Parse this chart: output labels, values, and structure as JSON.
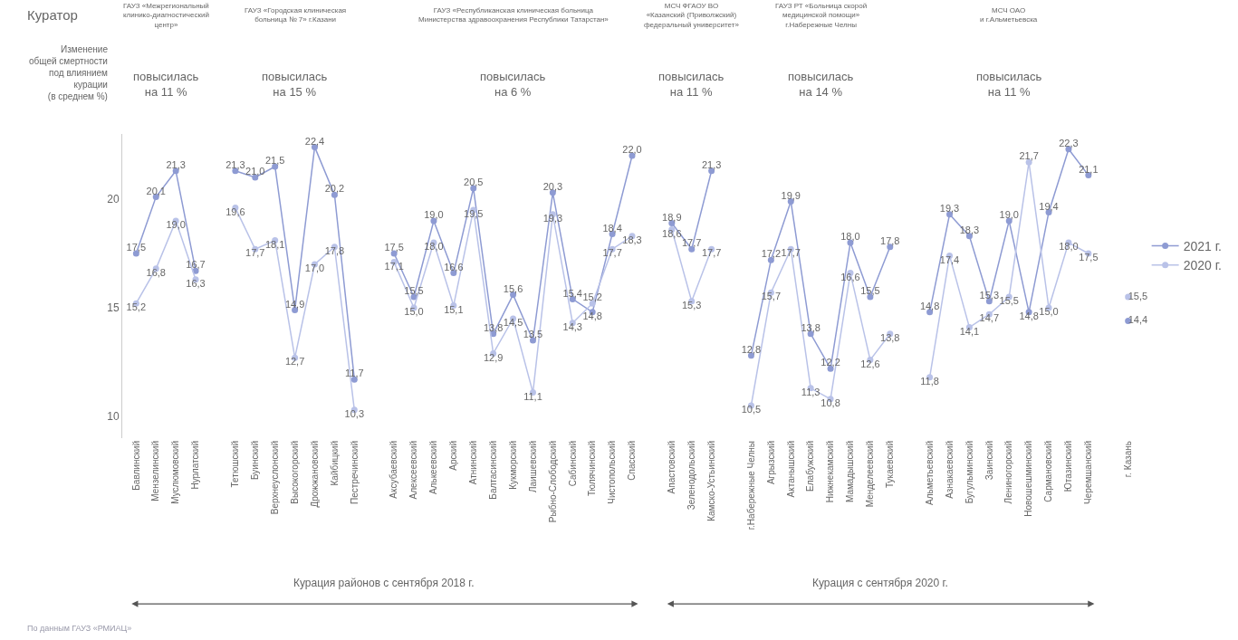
{
  "chart_data": {
    "type": "line",
    "categories": [
      "Бавлинский",
      "Мензелинский",
      "Муслюмовский",
      "Нурлатский",
      null,
      "Тетюшский",
      "Буинский",
      "Верхнеуслонский",
      "Высокогорский",
      "Дрожжановский",
      "Кайбицкий",
      "Пестречинский",
      null,
      "Аксубаевский",
      "Алексеевский",
      "Алькеевский",
      "Арский",
      "Атнинский",
      "Балтасинский",
      "Кукморский",
      "Лаишевский",
      "Рыбно-Слободский",
      "Сабинский",
      "Тюлячинский",
      "Чистопольский",
      "Спасский",
      null,
      "Апастовский",
      "Зеленодольский",
      "Камско-Устьинский",
      null,
      "г.Набережные Челны",
      "Агрызский",
      "Актанышский",
      "Елабужский",
      "Нижнекамский",
      "Мамадышский",
      "Менделеевский",
      "Тукаевский",
      null,
      "Альметьевский",
      "Азнакаевский",
      "Бугульминский",
      "Заинский",
      "Лениногорский",
      "Новошешминский",
      "Сармановский",
      "Ютазинский",
      "Черемшанский",
      null,
      "г. Казань"
    ],
    "series": [
      {
        "name": "2021 г.",
        "color": "#8e9bd3",
        "values": [
          17.5,
          20.1,
          21.3,
          16.7,
          null,
          21.3,
          21.0,
          21.5,
          14.9,
          22.4,
          20.2,
          11.7,
          null,
          17.5,
          15.5,
          19.0,
          16.6,
          20.5,
          13.8,
          15.6,
          13.5,
          20.3,
          15.4,
          14.8,
          18.4,
          22.0,
          null,
          18.9,
          17.7,
          21.3,
          null,
          12.8,
          17.2,
          19.9,
          13.8,
          12.2,
          18.0,
          15.5,
          17.8,
          null,
          14.8,
          19.3,
          18.3,
          15.3,
          19.0,
          14.8,
          19.4,
          22.3,
          21.1,
          null,
          14.4
        ],
        "value_labels": [
          "17,5",
          "20,1",
          "21,3",
          "16,7",
          null,
          "21,3",
          "21,0",
          "21,5",
          "14,9",
          "22,4",
          "20,2",
          "11,7",
          null,
          "17,5",
          "15,5",
          "19,0",
          "16,6",
          "20,5",
          "13,8",
          "15,6",
          "13,5",
          "20,3",
          "15,4",
          "14,8",
          "18,4",
          "22,0",
          null,
          "18,9",
          "17,7",
          "21,3",
          null,
          "12,8",
          "17,2",
          "19,9",
          "13,8",
          "12,2",
          "18,0",
          "15,5",
          "17,8",
          null,
          "14,8",
          "19,3",
          "18,3",
          "15,3",
          "19,0",
          "14,8",
          "19,4",
          "22,3",
          "21,1",
          null,
          "14,4"
        ]
      },
      {
        "name": "2020 г.",
        "color": "#b9c2e8",
        "values": [
          15.2,
          16.8,
          19.0,
          16.3,
          null,
          19.6,
          17.7,
          18.1,
          12.7,
          17.0,
          17.8,
          10.3,
          null,
          17.1,
          15.0,
          18.0,
          15.1,
          19.5,
          12.9,
          14.5,
          11.1,
          19.3,
          14.3,
          15.2,
          17.7,
          18.3,
          null,
          18.6,
          15.3,
          17.7,
          null,
          10.5,
          15.7,
          17.7,
          11.3,
          10.8,
          16.6,
          12.6,
          13.8,
          null,
          11.8,
          17.4,
          14.1,
          14.7,
          15.5,
          21.7,
          15.0,
          18.0,
          17.5,
          null,
          15.5
        ],
        "value_labels": [
          "15,2",
          "16,8",
          "19,0",
          "16,3",
          null,
          "19,6",
          "17,7",
          "18,1",
          "12,7",
          "17,0",
          "17,8",
          "10,3",
          null,
          "17,1",
          "15,0",
          "18,0",
          "15,1",
          "19,5",
          "12,9",
          "14,5",
          "11,1",
          "19,3",
          "14,3",
          "15,2",
          "17,7",
          "18,3",
          null,
          "18,6",
          "15,3",
          "17,7",
          null,
          "10,5",
          "15,7",
          "17,7",
          "11,3",
          "10,8",
          "16,6",
          "12,6",
          "13,8",
          null,
          "11,8",
          "17,4",
          "14,1",
          "14,7",
          "15,5",
          "21,7",
          "15,0",
          "18,0",
          "17,5",
          null,
          "15,5"
        ]
      }
    ],
    "ylim": [
      9,
      23
    ],
    "yticks": [
      10,
      15,
      20
    ],
    "grid": false,
    "legend": "right",
    "marker": "circle",
    "line_style": "solid",
    "annotations": [
      "Куратор",
      "Изменение\nобщей смертности\nпод влиянием\nкурации\n(в среднем %)",
      "ГАУЗ «Межрегиональный\nклинико-диагностический\nцентр»",
      "ГАУЗ «Городская клиническая\nбольница № 7» г.Казани",
      "ГАУЗ «Республиканская клиническая больница\nМинистерства здравоохранения Республики Татарстан»",
      "МСЧ ФГАОУ ВО\n«Казанский (Приволжский)\nфедеральный университет»",
      "ГАУЗ РТ «Больница скорой\nмедицинской помощи»\nг.Набережные Челны",
      "МСЧ ОАО\nи г.Альметьевска",
      "повысилась\nна 11 %",
      "повысилась\nна 15 %",
      "повысилась\nна 6 %",
      "повысилась\nна 11 %",
      "повысилась\nна 14 %",
      "повысилась\nна 11 %",
      "Курация районов с сентября 2018 г.",
      "Курация с сентября 2020 г.",
      "По данным ГАУЗ «РМИАЦ»"
    ]
  }
}
